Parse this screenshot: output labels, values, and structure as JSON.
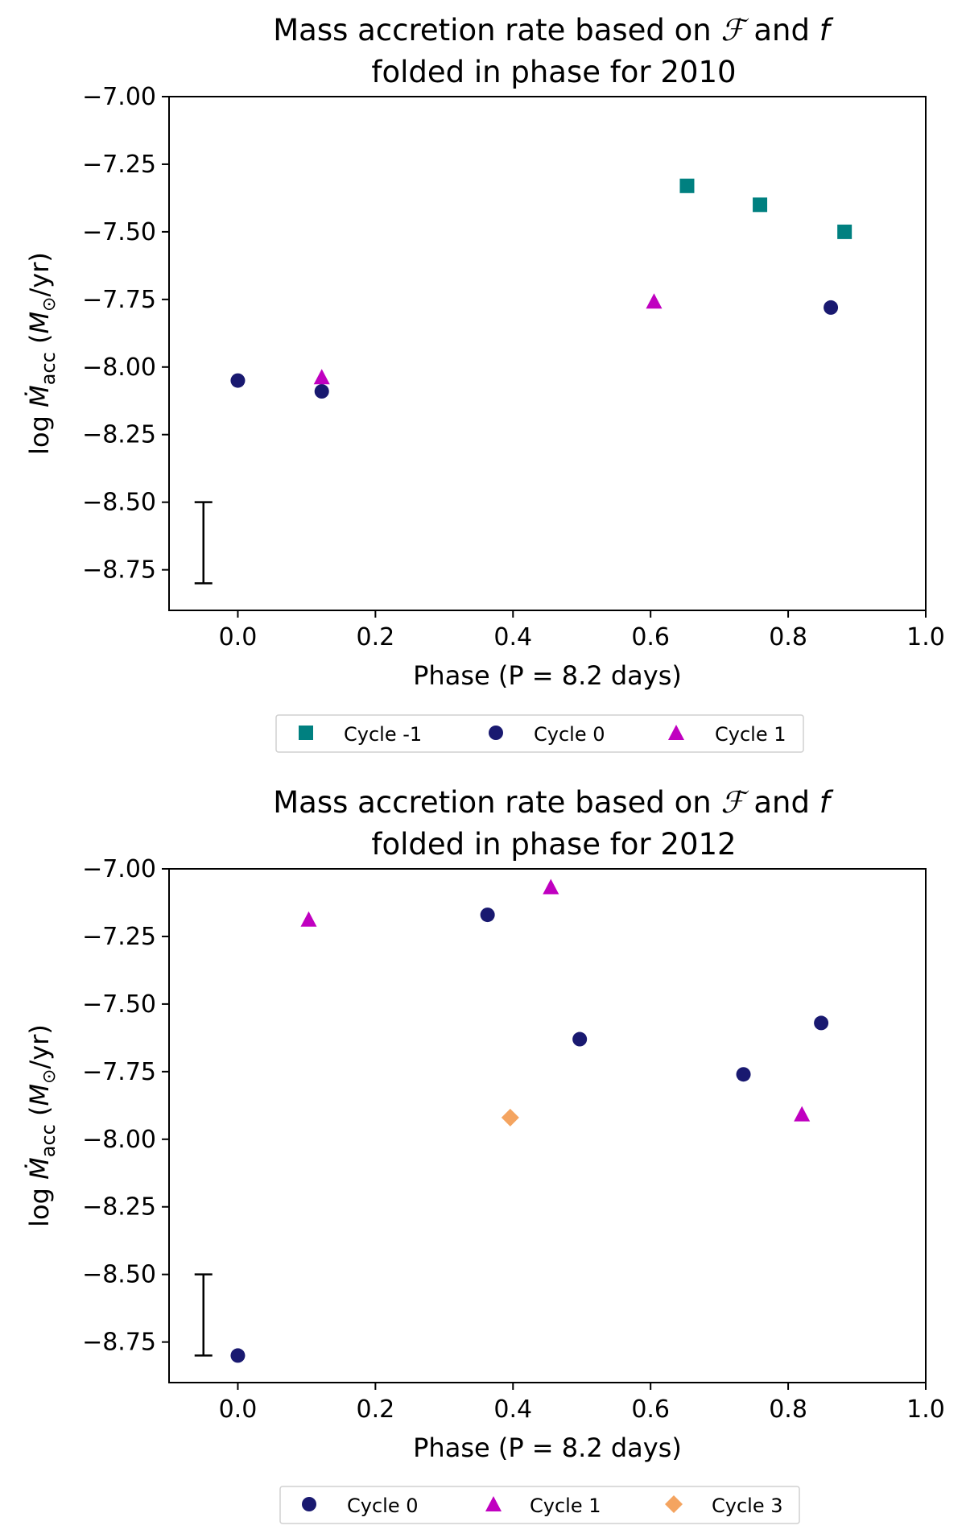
{
  "colors": {
    "cycle_minus1": "#008080",
    "cycle_0": "#191970",
    "cycle_1": "#c000c0",
    "cycle_3": "#f4a460"
  },
  "chart_data": [
    {
      "type": "scatter",
      "title_line1_prefix": "Mass accretion rate based on ",
      "title_line1_script": "ℱ",
      "title_line1_and": " and ",
      "title_line1_f": "f",
      "title_line2": "folded in phase for 2010",
      "xlabel": "Phase (P = 8.2 days)",
      "ylabel_prefix": "log ",
      "ylabel_symbol": "Ṁ",
      "ylabel_sub": "acc",
      "ylabel_unit_open": " (",
      "ylabel_unit_M": "M",
      "ylabel_unit_sun": "⊙",
      "ylabel_unit_close": "/yr)",
      "xlim": [
        -0.1,
        1.0
      ],
      "ylim": [
        -8.9,
        -7.0
      ],
      "x_ticks": [
        0.0,
        0.2,
        0.4,
        0.6,
        0.8,
        1.0
      ],
      "x_tick_labels": [
        "0.0",
        "0.2",
        "0.4",
        "0.6",
        "0.8",
        "1.0"
      ],
      "y_ticks": [
        -7.0,
        -7.25,
        -7.5,
        -7.75,
        -8.0,
        -8.25,
        -8.5,
        -8.75
      ],
      "y_tick_labels": [
        "−7.00",
        "−7.25",
        "−7.50",
        "−7.75",
        "−8.00",
        "−8.25",
        "−8.50",
        "−8.75"
      ],
      "grid": false,
      "legend_position": "below",
      "error_bar": {
        "x": -0.05,
        "y_low": -8.8,
        "y_high": -8.5
      },
      "series": [
        {
          "name": "Cycle -1",
          "marker": "square",
          "color": "#008080",
          "x": [
            0.653,
            0.759,
            0.882
          ],
          "y": [
            -7.33,
            -7.4,
            -7.5
          ]
        },
        {
          "name": "Cycle 0",
          "marker": "circle",
          "color": "#191970",
          "x": [
            0.0,
            0.122,
            0.862
          ],
          "y": [
            -8.05,
            -8.09,
            -7.78
          ]
        },
        {
          "name": "Cycle 1",
          "marker": "triangle",
          "color": "#c000c0",
          "x": [
            0.122,
            0.605
          ],
          "y": [
            -8.04,
            -7.76
          ]
        }
      ]
    },
    {
      "type": "scatter",
      "title_line1_prefix": "Mass accretion rate based on ",
      "title_line1_script": "ℱ",
      "title_line1_and": " and ",
      "title_line1_f": "f",
      "title_line2": "folded in phase for 2012",
      "xlabel": "Phase (P = 8.2 days)",
      "ylabel_prefix": "log ",
      "ylabel_symbol": "Ṁ",
      "ylabel_sub": "acc",
      "ylabel_unit_open": " (",
      "ylabel_unit_M": "M",
      "ylabel_unit_sun": "⊙",
      "ylabel_unit_close": "/yr)",
      "xlim": [
        -0.1,
        1.0
      ],
      "ylim": [
        -8.9,
        -7.0
      ],
      "x_ticks": [
        0.0,
        0.2,
        0.4,
        0.6,
        0.8,
        1.0
      ],
      "x_tick_labels": [
        "0.0",
        "0.2",
        "0.4",
        "0.6",
        "0.8",
        "1.0"
      ],
      "y_ticks": [
        -7.0,
        -7.25,
        -7.5,
        -7.75,
        -8.0,
        -8.25,
        -8.5,
        -8.75
      ],
      "y_tick_labels": [
        "−7.00",
        "−7.25",
        "−7.50",
        "−7.75",
        "−8.00",
        "−8.25",
        "−8.50",
        "−8.75"
      ],
      "grid": false,
      "legend_position": "below",
      "error_bar": {
        "x": -0.05,
        "y_low": -8.8,
        "y_high": -8.5
      },
      "series": [
        {
          "name": "Cycle 0",
          "marker": "circle",
          "color": "#191970",
          "x": [
            0.0,
            0.363,
            0.497,
            0.735,
            0.848
          ],
          "y": [
            -8.8,
            -7.17,
            -7.63,
            -7.76,
            -7.57
          ]
        },
        {
          "name": "Cycle 1",
          "marker": "triangle",
          "color": "#c000c0",
          "x": [
            0.103,
            0.455,
            0.82
          ],
          "y": [
            -7.19,
            -7.07,
            -7.91
          ]
        },
        {
          "name": "Cycle 3",
          "marker": "diamond",
          "color": "#f4a460",
          "x": [
            0.396
          ],
          "y": [
            -7.92
          ]
        }
      ]
    }
  ]
}
